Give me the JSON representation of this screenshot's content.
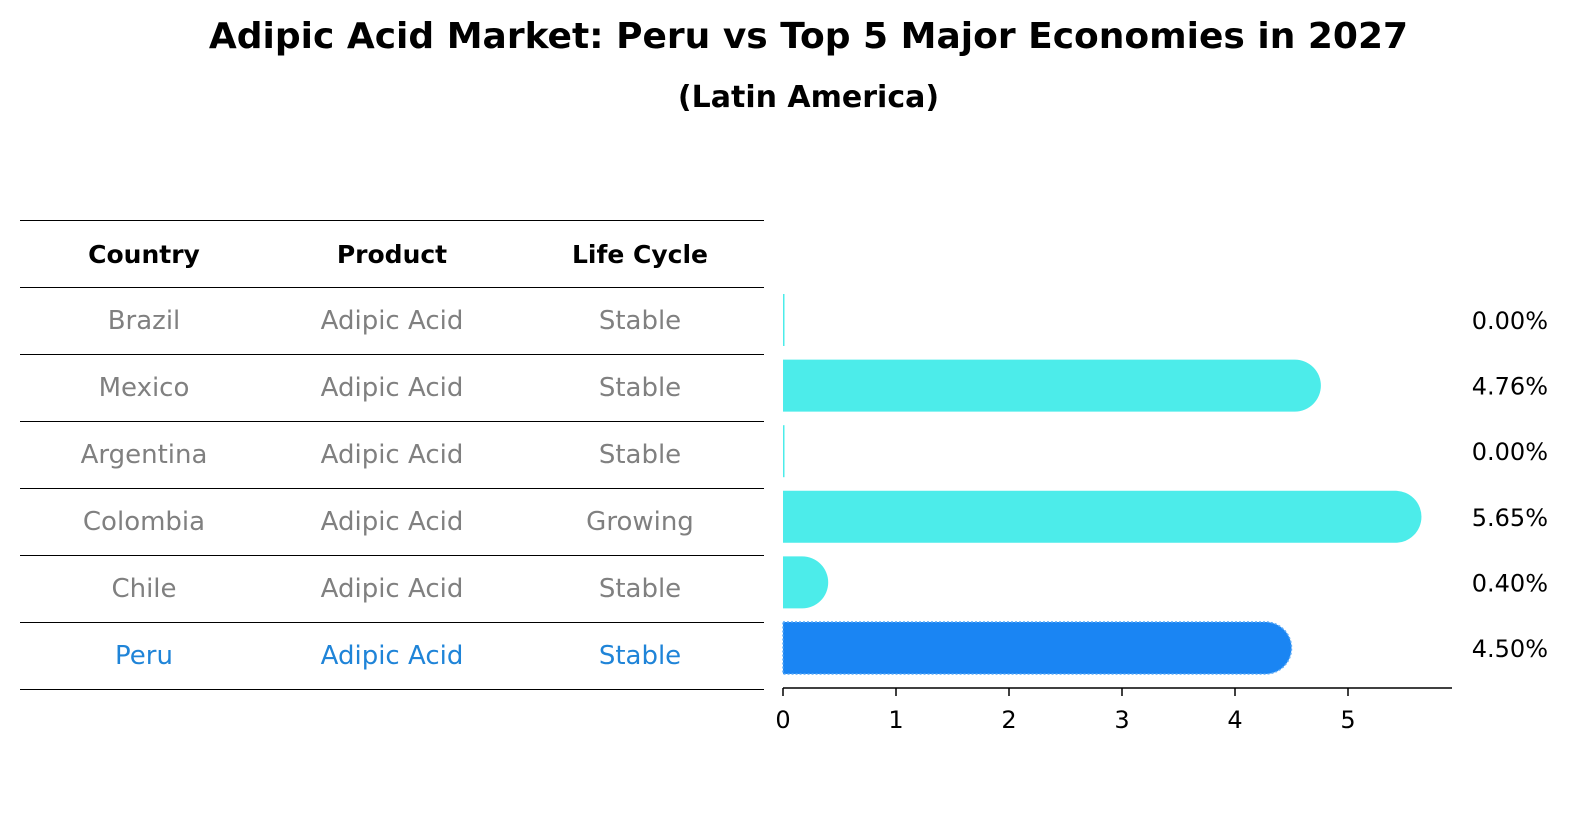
{
  "title": "Adipic Acid Market: Peru vs Top 5 Major Economies in 2027",
  "subtitle": "(Latin America)",
  "table": {
    "headers": [
      "Country",
      "Product",
      "Life Cycle"
    ],
    "rows": [
      [
        "Brazil",
        "Adipic Acid",
        "Stable"
      ],
      [
        "Mexico",
        "Adipic Acid",
        "Stable"
      ],
      [
        "Argentina",
        "Adipic Acid",
        "Stable"
      ],
      [
        "Colombia",
        "Adipic Acid",
        "Growing"
      ],
      [
        "Chile",
        "Adipic Acid",
        "Stable"
      ],
      [
        "Peru",
        "Adipic Acid",
        "Stable"
      ]
    ]
  },
  "chart_data": {
    "type": "bar",
    "orientation": "horizontal",
    "categories": [
      "Brazil",
      "Mexico",
      "Argentina",
      "Colombia",
      "Chile",
      "Peru"
    ],
    "values": [
      0.0,
      4.76,
      0.0,
      5.65,
      0.4,
      4.5
    ],
    "value_labels": [
      "0.00%",
      "4.76%",
      "0.00%",
      "5.65%",
      "0.40%",
      "4.50%"
    ],
    "xticks": [
      "0",
      "1",
      "2",
      "3",
      "4",
      "5"
    ],
    "xlim": [
      0,
      5.93
    ],
    "highlight": "Peru",
    "colors": {
      "default": "#4cecea",
      "highlight": "#1a85f3"
    }
  }
}
